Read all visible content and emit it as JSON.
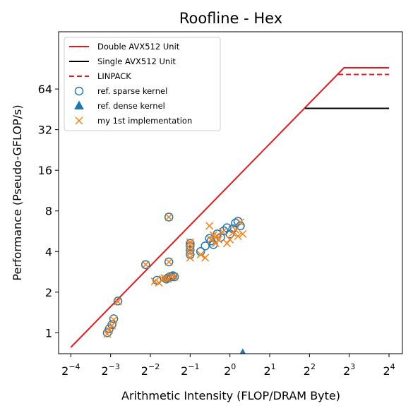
{
  "chart_data": {
    "type": "scatter",
    "title": "Roofline - Hex",
    "xlabel": "Arithmetic Intensity (FLOP/DRAM Byte)",
    "ylabel": "Performance (Pseudo-GFLOP/s)",
    "x_scale": "log2",
    "y_scale": "log2",
    "xlim": [
      0.0505,
      20.2
    ],
    "ylim": [
      0.7,
      170
    ],
    "x_ticks": [
      {
        "value": 0.0625,
        "base": "2",
        "exp": "−4"
      },
      {
        "value": 0.125,
        "base": "2",
        "exp": "−3"
      },
      {
        "value": 0.25,
        "base": "2",
        "exp": "−2"
      },
      {
        "value": 0.5,
        "base": "2",
        "exp": "−1"
      },
      {
        "value": 1,
        "base": "2",
        "exp": "0"
      },
      {
        "value": 2,
        "base": "2",
        "exp": "1"
      },
      {
        "value": 4,
        "base": "2",
        "exp": "2"
      },
      {
        "value": 8,
        "base": "2",
        "exp": "3"
      },
      {
        "value": 16,
        "base": "2",
        "exp": "4"
      }
    ],
    "y_ticks": [
      {
        "value": 1,
        "label": "1"
      },
      {
        "value": 2,
        "label": "2"
      },
      {
        "value": 4,
        "label": "4"
      },
      {
        "value": 8,
        "label": "8"
      },
      {
        "value": 16,
        "label": "16"
      },
      {
        "value": 32,
        "label": "32"
      },
      {
        "value": 64,
        "label": "64"
      }
    ],
    "legend_position": "upper-left",
    "series": [
      {
        "name": "Double AVX512 Unit",
        "kind": "line",
        "color": "#e41a1c",
        "dash": "solid",
        "x": [
          0.0625,
          7.3,
          16
        ],
        "y": [
          0.78,
          92,
          92
        ]
      },
      {
        "name": "Single AVX512 Unit",
        "kind": "line",
        "color": "#000000",
        "dash": "solid",
        "x": [
          3.7,
          16
        ],
        "y": [
          46,
          46
        ]
      },
      {
        "name": "LINPACK",
        "kind": "line",
        "color": "#e41a1c",
        "dash": "dashed",
        "x": [
          6.6,
          16
        ],
        "y": [
          82,
          82
        ]
      },
      {
        "name": "ref. sparse kernel",
        "kind": "marker",
        "marker": "circle-open",
        "color": "#1f77b4",
        "x": [
          0.118,
          0.122,
          0.128,
          0.132,
          0.142,
          0.23,
          0.28,
          0.33,
          0.34,
          0.35,
          0.36,
          0.37,
          0.38,
          0.345,
          0.345,
          0.5,
          0.5,
          0.5,
          0.5,
          0.6,
          0.65,
          0.7,
          0.72,
          0.75,
          0.8,
          0.85,
          0.9,
          0.95,
          1.0,
          1.05,
          1.1,
          1.15,
          1.2
        ],
        "y": [
          1.0,
          1.07,
          1.15,
          1.27,
          1.72,
          3.2,
          2.45,
          2.5,
          2.55,
          2.6,
          2.6,
          2.65,
          2.6,
          3.35,
          7.2,
          3.8,
          4.1,
          4.4,
          4.6,
          4.0,
          4.4,
          5.0,
          4.8,
          4.5,
          5.4,
          5.1,
          5.7,
          6.0,
          5.4,
          5.9,
          6.5,
          6.7,
          6.2
        ]
      },
      {
        "name": "ref. dense kernel",
        "kind": "marker",
        "marker": "triangle-filled",
        "color": "#1f77b4",
        "x": [
          1.25
        ],
        "y": [
          0.7
        ]
      },
      {
        "name": "my 1st implementation",
        "kind": "marker",
        "marker": "x",
        "color": "#ff7f0e",
        "x": [
          0.118,
          0.122,
          0.128,
          0.132,
          0.142,
          0.23,
          0.27,
          0.29,
          0.31,
          0.32,
          0.34,
          0.36,
          0.38,
          0.345,
          0.345,
          0.5,
          0.5,
          0.5,
          0.5,
          0.5,
          0.6,
          0.65,
          0.7,
          0.72,
          0.75,
          0.78,
          0.8,
          0.82,
          0.88,
          0.95,
          1.0,
          1.05,
          1.1,
          1.15,
          1.2,
          1.25
        ],
        "y": [
          0.98,
          1.05,
          1.13,
          1.25,
          1.7,
          3.2,
          2.4,
          2.35,
          2.5,
          2.55,
          2.5,
          2.6,
          2.6,
          3.35,
          7.2,
          3.6,
          3.9,
          4.2,
          4.5,
          4.7,
          3.8,
          3.6,
          6.2,
          4.9,
          5.3,
          4.6,
          5.2,
          4.9,
          5.6,
          4.6,
          4.9,
          5.5,
          5.8,
          5.2,
          6.6,
          5.4
        ]
      }
    ]
  }
}
